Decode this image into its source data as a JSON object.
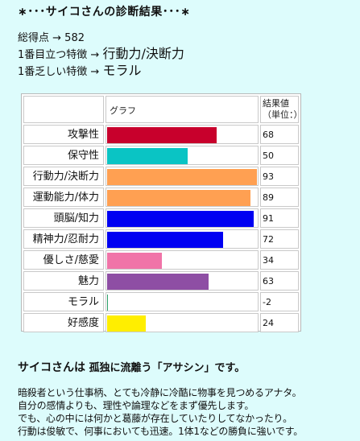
{
  "title": "∗･･･サイコさんの診断結果･･･∗",
  "summary": {
    "total_label": "総得点 → ",
    "total_value": "582",
    "top_label": "1番目立つ特徴 → ",
    "top_value": "行動力/決断力",
    "low_label": "1番乏しい特徴 → ",
    "low_value": "モラル"
  },
  "table": {
    "header_graph": "グラフ",
    "header_value": "結果値",
    "header_unit": "（単位：）"
  },
  "chart_data": {
    "type": "bar",
    "orientation": "horizontal",
    "xlim": [
      0,
      93
    ],
    "grid": false,
    "categories": [
      "攻撃性",
      "保守性",
      "行動力/決断力",
      "運動能力/体力",
      "頭脳/知力",
      "精神力/忍耐力",
      "優しさ/慈愛",
      "魅力",
      "モラル",
      "好感度"
    ],
    "values": [
      68,
      50,
      93,
      89,
      91,
      72,
      34,
      63,
      -2,
      24
    ],
    "value_labels": [
      "68",
      "50",
      "93",
      "89",
      "91",
      "72",
      "34",
      "63",
      "-2",
      "24"
    ],
    "colors": [
      "#c8002c",
      "#0ac4c4",
      "#ffa052",
      "#ffa052",
      "#0000f2",
      "#0000f2",
      "#f074a8",
      "#8e4ea4",
      "#2aa068",
      "#ffee00"
    ]
  },
  "result": {
    "name": "サイコさんは",
    "text": " 孤独に流離う「アサシン」です。"
  },
  "description": [
    "暗殺者という仕事柄、とても冷静に冷酷に物事を見つめるアナタ。",
    "自分の感情よりも、理性や論理などをまず優先します。",
    "でも、心の中には何かと葛藤が存在していたりしてなかったり。",
    "行動は俊敏で、何事においても迅速。1体1などの勝負に強いです。"
  ]
}
